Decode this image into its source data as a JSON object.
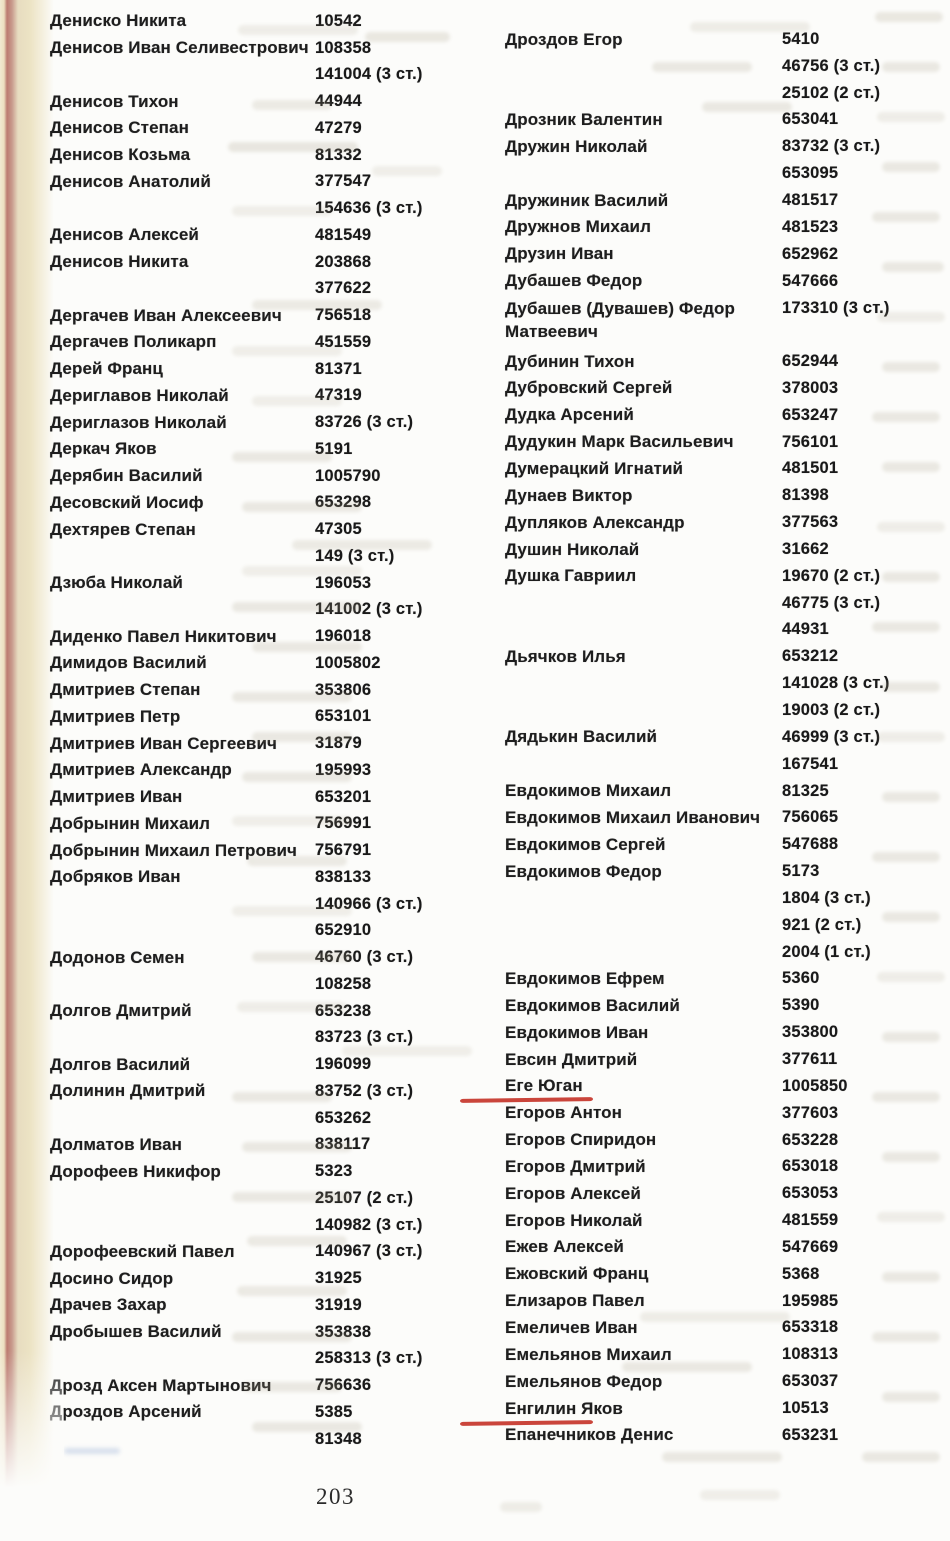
{
  "page": {
    "number": "203",
    "annotation": {
      "underline_color": "#c5352a",
      "underlined_names": [
        "Еге Юган",
        "Енгилин Яков"
      ]
    },
    "columns": [
      {
        "entries": [
          {
            "name": "Дениско Никита",
            "num": "10542"
          },
          {
            "name": "Денисов Иван Селивестрович",
            "num": "108358"
          },
          {
            "name": "",
            "num": "141004 (3 ст.)"
          },
          {
            "name": "Денисов Тихон",
            "num": "44944"
          },
          {
            "name": "Денисов Степан",
            "num": "47279"
          },
          {
            "name": "Денисов Козьма",
            "num": "81332"
          },
          {
            "name": "Денисов Анатолий",
            "num": "377547"
          },
          {
            "name": "",
            "num": "154636 (3 ст.)"
          },
          {
            "name": "Денисов Алексей",
            "num": "481549"
          },
          {
            "name": "Денисов Никита",
            "num": "203868"
          },
          {
            "name": "",
            "num": "377622"
          },
          {
            "name": "Дергачев Иван Алексеевич",
            "num": "756518"
          },
          {
            "name": "Дергачев Поликарп",
            "num": "451559"
          },
          {
            "name": "Дерей Франц",
            "num": "81371"
          },
          {
            "name": "Дериглавов Николай",
            "num": "47319"
          },
          {
            "name": "Дериглазов Николай",
            "num": "83726 (3 ст.)"
          },
          {
            "name": "Деркач Яков",
            "num": "5191"
          },
          {
            "name": "Дерябин Василий",
            "num": "1005790"
          },
          {
            "name": "Десовский Иосиф",
            "num": "653298"
          },
          {
            "name": "Дехтярев Степан",
            "num": "47305"
          },
          {
            "name": "",
            "num": "149 (3 ст.)"
          },
          {
            "name": "Дзюба Николай",
            "num": "196053"
          },
          {
            "name": "",
            "num": "141002 (3 ст.)"
          },
          {
            "name": "Диденко Павел Никитович",
            "num": "196018"
          },
          {
            "name": "Димидов Василий",
            "num": "1005802"
          },
          {
            "name": "Дмитриев Степан",
            "num": "353806"
          },
          {
            "name": "Дмитриев Петр",
            "num": "653101"
          },
          {
            "name": "Дмитриев Иван Сергеевич",
            "num": "31879"
          },
          {
            "name": "Дмитриев Александр",
            "num": "195993"
          },
          {
            "name": "Дмитриев Иван",
            "num": "653201"
          },
          {
            "name": "Добрынин Михаил",
            "num": "756991"
          },
          {
            "name": "Добрынин Михаил Петрович",
            "num": "756791"
          },
          {
            "name": "Добряков Иван",
            "num": "838133"
          },
          {
            "name": "",
            "num": "140966 (3 ст.)"
          },
          {
            "name": "",
            "num": "652910"
          },
          {
            "name": "Додонов Семен",
            "num": "46760 (3 ст.)"
          },
          {
            "name": "",
            "num": "108258"
          },
          {
            "name": "Долгов Дмитрий",
            "num": "653238"
          },
          {
            "name": "",
            "num": "83723 (3 ст.)"
          },
          {
            "name": "Долгов Василий",
            "num": "196099"
          },
          {
            "name": "Долинин Дмитрий",
            "num": "83752 (3 ст.)"
          },
          {
            "name": "",
            "num": "653262"
          },
          {
            "name": "Долматов Иван",
            "num": "838117"
          },
          {
            "name": "Дорофеев Никифор",
            "num": "5323"
          },
          {
            "name": "",
            "num": "25107 (2 ст.)"
          },
          {
            "name": "",
            "num": "140982 (3 ст.)"
          },
          {
            "name": "Дорофеевский Павел",
            "num": "140967 (3 ст.)"
          },
          {
            "name": "Досино Сидор",
            "num": "31925"
          },
          {
            "name": "Драчев Захар",
            "num": "31919"
          },
          {
            "name": "Дробышев Василий",
            "num": "353838"
          },
          {
            "name": "",
            "num": "258313 (3 ст.)"
          },
          {
            "name": "Дрозд Аксен Мартынович",
            "num": "756636"
          },
          {
            "name": "Дроздов Арсений",
            "num": "5385"
          },
          {
            "name": "",
            "num": "81348"
          }
        ]
      },
      {
        "entries": [
          {
            "name": "Дроздов Егор",
            "num": "5410"
          },
          {
            "name": "",
            "num": "46756 (3 ст.)"
          },
          {
            "name": "",
            "num": "25102 (2 ст.)"
          },
          {
            "name": "Дрозник Валентин",
            "num": "653041"
          },
          {
            "name": "Дружин Николай",
            "num": "83732 (3 ст.)"
          },
          {
            "name": "",
            "num": "653095"
          },
          {
            "name": "Дружиник Василий",
            "num": "481517"
          },
          {
            "name": "Дружнов Михаил",
            "num": "481523"
          },
          {
            "name": "Друзин Иван",
            "num": "652962"
          },
          {
            "name": "Дубашев Федор",
            "num": "547666"
          },
          {
            "name": "Дубашев (Дувашев) Федор Матвеевич",
            "num": "173310 (3 ст.)",
            "wrap": true
          },
          {
            "name": "Дубинин Тихон",
            "num": "652944"
          },
          {
            "name": "Дубровский Сергей",
            "num": "378003"
          },
          {
            "name": "Дудка Арсений",
            "num": "653247"
          },
          {
            "name": "Дудукин Марк Васильевич",
            "num": "756101"
          },
          {
            "name": "Думерацкий Игнатий",
            "num": "481501"
          },
          {
            "name": "Дунаев Виктор",
            "num": "81398"
          },
          {
            "name": "Дупляков Александр",
            "num": "377563"
          },
          {
            "name": "Душин Николай",
            "num": "31662"
          },
          {
            "name": "Душка Гавриил",
            "num": "19670 (2 ст.)"
          },
          {
            "name": "",
            "num": "46775 (3 ст.)"
          },
          {
            "name": "",
            "num": "44931"
          },
          {
            "name": "Дьячков Илья",
            "num": "653212"
          },
          {
            "name": "",
            "num": "141028 (3 ст.)"
          },
          {
            "name": "",
            "num": "19003 (2 ст.)"
          },
          {
            "name": "Дядькин Василий",
            "num": "46999 (3 ст.)"
          },
          {
            "name": "",
            "num": "167541"
          },
          {
            "name": "Евдокимов Михаил",
            "num": "81325"
          },
          {
            "name": "Евдокимов Михаил Иванович",
            "num": "756065"
          },
          {
            "name": "Евдокимов Сергей",
            "num": "547688"
          },
          {
            "name": "Евдокимов Федор",
            "num": "5173"
          },
          {
            "name": "",
            "num": "1804 (3 ст.)"
          },
          {
            "name": "",
            "num": "921 (2 ст.)"
          },
          {
            "name": "",
            "num": "2004 (1 ст.)"
          },
          {
            "name": "Евдокимов Ефрем",
            "num": "5360"
          },
          {
            "name": "Евдокимов Василий",
            "num": "5390"
          },
          {
            "name": "Евдокимов Иван",
            "num": "353800"
          },
          {
            "name": "Евсин Дмитрий",
            "num": "377611"
          },
          {
            "name": "Еге Юган",
            "num": "1005850",
            "underlined": true
          },
          {
            "name": "Егоров Антон",
            "num": "377603"
          },
          {
            "name": "Егоров Спиридон",
            "num": "653228"
          },
          {
            "name": "Егоров Дмитрий",
            "num": "653018"
          },
          {
            "name": "Егоров Алексей",
            "num": "653053"
          },
          {
            "name": "Егоров Николай",
            "num": "481559"
          },
          {
            "name": "Ежев Алексей",
            "num": "547669"
          },
          {
            "name": "Ежовский Франц",
            "num": "5368"
          },
          {
            "name": "Елизаров Павел",
            "num": "195985"
          },
          {
            "name": "Емеличев Иван",
            "num": "653318"
          },
          {
            "name": "Емельянов Михаил",
            "num": "108313"
          },
          {
            "name": "Емельянов Федор",
            "num": "653037"
          },
          {
            "name": "Енгилин Яков",
            "num": "10513",
            "underlined": true
          },
          {
            "name": "Епанечников Денис",
            "num": "653231"
          }
        ]
      }
    ]
  }
}
